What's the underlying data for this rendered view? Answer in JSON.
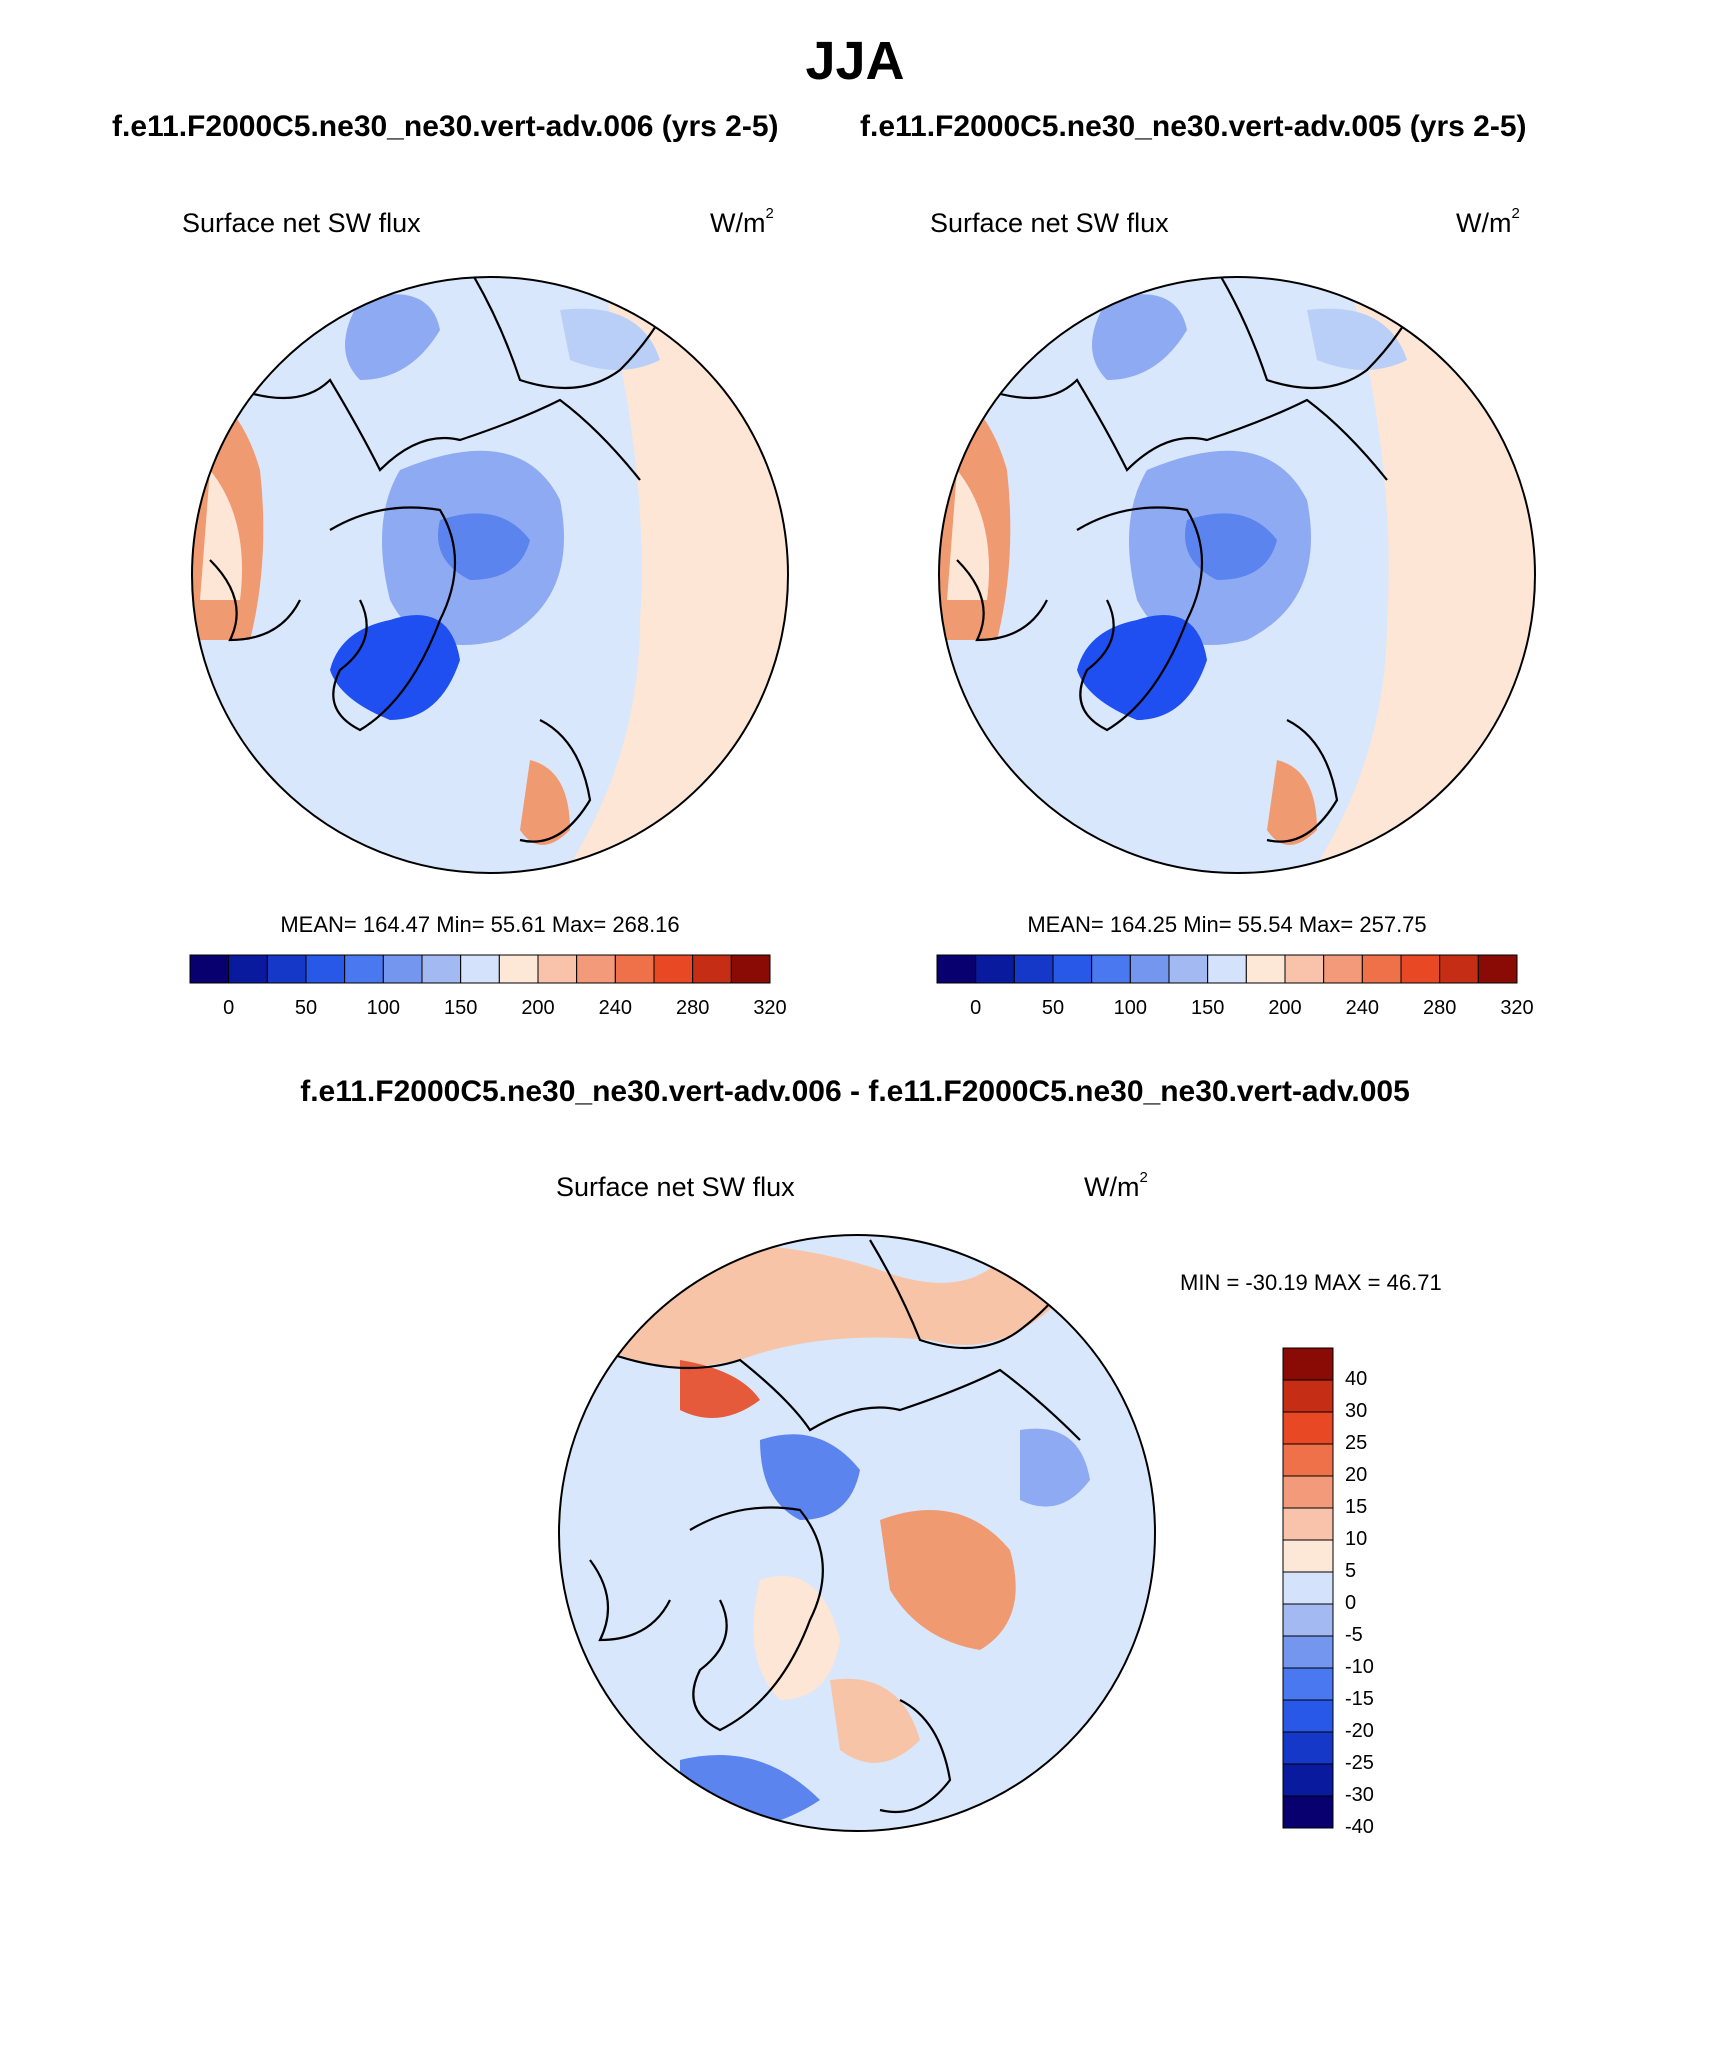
{
  "page_title": "JJA",
  "cases": {
    "left": "f.e11.F2000C5.ne30_ne30.vert-adv.006 (yrs 2-5)",
    "right": "f.e11.F2000C5.ne30_ne30.vert-adv.005 (yrs 2-5)",
    "difference": "f.e11.F2000C5.ne30_ne30.vert-adv.006 - f.e11.F2000C5.ne30_ne30.vert-adv.005"
  },
  "panels": [
    {
      "label": "Surface net SW flux",
      "unit": "W/m",
      "unit_sup": "2",
      "stats": "MEAN= 164.47  Min=  55.61  Max= 268.16"
    },
    {
      "label": "Surface net SW flux",
      "unit": "W/m",
      "unit_sup": "2",
      "stats": "MEAN= 164.25  Min=  55.54  Max= 257.75"
    },
    {
      "label": "Surface net SW flux",
      "unit": "W/m",
      "unit_sup": "2",
      "stats": "MIN = -30.19 MAX =  46.71"
    }
  ],
  "chart_data": [
    {
      "type": "heatmap",
      "projection": "north polar stereographic",
      "variable": "Surface net SW flux",
      "units": "W/m2",
      "case": "f.e11.F2000C5.ne30_ne30.vert-adv.006 (yrs 2-5)",
      "mean": 164.47,
      "min": 55.61,
      "max": 268.16,
      "colorbar_levels": [
        0,
        25,
        50,
        75,
        100,
        125,
        150,
        175,
        200,
        220,
        240,
        260,
        280,
        300,
        320
      ],
      "colorbar_tick_labels": [
        "0",
        "50",
        "100",
        "150",
        "200",
        "240",
        "280",
        "320"
      ]
    },
    {
      "type": "heatmap",
      "projection": "north polar stereographic",
      "variable": "Surface net SW flux",
      "units": "W/m2",
      "case": "f.e11.F2000C5.ne30_ne30.vert-adv.005 (yrs 2-5)",
      "mean": 164.25,
      "min": 55.54,
      "max": 257.75,
      "colorbar_levels": [
        0,
        25,
        50,
        75,
        100,
        125,
        150,
        175,
        200,
        220,
        240,
        260,
        280,
        300,
        320
      ],
      "colorbar_tick_labels": [
        "0",
        "50",
        "100",
        "150",
        "200",
        "240",
        "280",
        "320"
      ]
    },
    {
      "type": "heatmap",
      "projection": "north polar stereographic",
      "variable": "Surface net SW flux difference",
      "units": "W/m2",
      "case": "f.e11.F2000C5.ne30_ne30.vert-adv.006 - f.e11.F2000C5.ne30_ne30.vert-adv.005",
      "min": -30.19,
      "max": 46.71,
      "colorbar_levels": [
        -40,
        -30,
        -25,
        -20,
        -15,
        -10,
        -5,
        0,
        5,
        10,
        15,
        20,
        25,
        30,
        40
      ],
      "colorbar_tick_labels": [
        "40",
        "30",
        "25",
        "20",
        "15",
        "10",
        "5",
        "0",
        "-5",
        "-10",
        "-15",
        "-20",
        "-25",
        "-30",
        "-40"
      ]
    }
  ],
  "colors": {
    "palette": [
      "#08006f",
      "#0a1a9e",
      "#1638c8",
      "#2758e8",
      "#4a78f0",
      "#7496ef",
      "#a3b9f2",
      "#d4e3fb",
      "#fde8d8",
      "#f9c2aa",
      "#f39a7a",
      "#ef7149",
      "#e94824",
      "#c52e14",
      "#8a0b05"
    ],
    "map_colors": [
      "#1f4ff0",
      "#5c84ee",
      "#8eaaf2",
      "#b9cff7",
      "#d8e7fc",
      "#fde6d5",
      "#f7c4a7",
      "#f09a72",
      "#e55a3a"
    ]
  }
}
